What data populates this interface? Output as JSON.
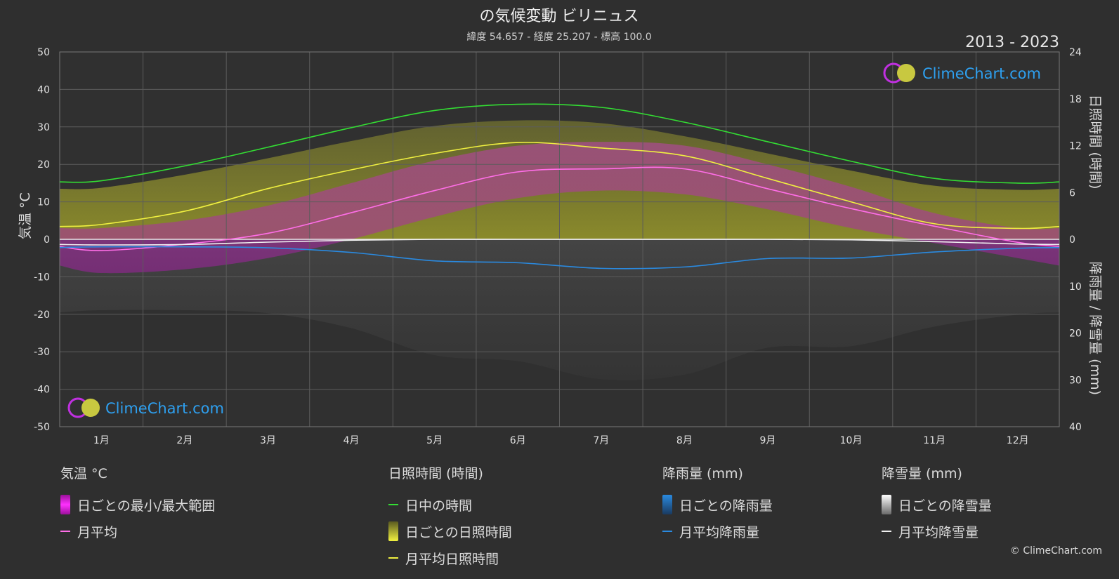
{
  "title": "の気候変動 ビリニュス",
  "subtitle": "緯度 54.657 - 経度 25.207 - 標高 100.0",
  "period": "2013 - 2023",
  "brand": "ClimeChart.com",
  "copyright": "© ClimeChart.com",
  "chart_data": {
    "type": "area",
    "months": [
      "1月",
      "2月",
      "3月",
      "4月",
      "5月",
      "6月",
      "7月",
      "8月",
      "9月",
      "10月",
      "11月",
      "12月"
    ],
    "axes": {
      "y_left": {
        "label": "気温 °C",
        "range": [
          -50,
          50
        ],
        "ticks": [
          "50",
          "40",
          "30",
          "20",
          "10",
          "0",
          "-10",
          "-20",
          "-30",
          "-40",
          "-50"
        ]
      },
      "y_right_top": {
        "label": "日照時間 (時間)",
        "range": [
          0,
          24
        ],
        "ticks": [
          "24",
          "18",
          "12",
          "6",
          "0"
        ]
      },
      "y_right_bottom": {
        "label": "降雨量 / 降雪量 (mm)",
        "range": [
          0,
          40
        ],
        "ticks": [
          "10",
          "20",
          "30",
          "40"
        ]
      }
    },
    "series": [
      {
        "name": "日中の時間",
        "unit": "時間",
        "values": [
          7.5,
          9.4,
          11.8,
          14.3,
          16.5,
          17.3,
          16.9,
          15.0,
          12.5,
          10.0,
          7.8,
          7.2
        ]
      },
      {
        "name": "月平均日照時間",
        "unit": "時間",
        "values": [
          1.9,
          3.6,
          6.5,
          8.9,
          11.0,
          12.4,
          11.7,
          10.7,
          7.8,
          4.8,
          2.0,
          1.4
        ]
      },
      {
        "name": "月平均",
        "unit": "°C",
        "values": [
          -3.0,
          -1.3,
          1.6,
          7.1,
          13.0,
          18.0,
          18.8,
          18.8,
          13.5,
          8.2,
          3.5,
          -0.8
        ]
      },
      {
        "name": "月平均降雨量",
        "unit": "mm",
        "values": [
          1.6,
          1.6,
          1.8,
          2.8,
          4.6,
          5.0,
          6.2,
          5.9,
          4.1,
          4.0,
          2.7,
          1.9
        ]
      },
      {
        "name": "月平均降雪量",
        "unit": "mm",
        "values": [
          1.2,
          1.1,
          0.6,
          0.2,
          0.0,
          0.0,
          0.0,
          0.0,
          0.0,
          0.1,
          0.5,
          1.0
        ]
      }
    ],
    "daily_temp_range": {
      "name": "日ごとの最小/最大範囲",
      "min": [
        -9,
        -8,
        -5,
        0,
        6,
        11,
        13,
        12,
        8,
        3,
        -1,
        -5
      ],
      "max": [
        3,
        5,
        9,
        15,
        21,
        25,
        26,
        25,
        20,
        14,
        7,
        3
      ]
    },
    "grid": true,
    "legend_position": "bottom"
  },
  "legend": {
    "groups": [
      {
        "title": "気温 °C",
        "items": [
          {
            "label": "日ごとの最小/最大範囲",
            "kind": "box",
            "color": "#e020e0"
          },
          {
            "label": "月平均",
            "kind": "line",
            "color": "#ff6ee8"
          }
        ]
      },
      {
        "title": "日照時間 (時間)",
        "items": [
          {
            "label": "日中の時間",
            "kind": "line",
            "color": "#33dd33"
          },
          {
            "label": "日ごとの日照時間",
            "kind": "box",
            "color": "#d8d840"
          },
          {
            "label": "月平均日照時間",
            "kind": "line",
            "color": "#f0f040"
          }
        ]
      },
      {
        "title": "降雨量 (mm)",
        "items": [
          {
            "label": "日ごとの降雨量",
            "kind": "box",
            "color": "#2a8ae0"
          },
          {
            "label": "月平均降雨量",
            "kind": "line",
            "color": "#2a8ae0"
          }
        ]
      },
      {
        "title": "降雪量 (mm)",
        "items": [
          {
            "label": "日ごとの降雪量",
            "kind": "box",
            "color": "#e0e0e0"
          },
          {
            "label": "月平均降雪量",
            "kind": "line",
            "color": "#f0f0f0"
          }
        ]
      }
    ]
  },
  "colors": {
    "background": "#2f2f2f",
    "grid": "#5a5a5a",
    "text": "#e0e0e0",
    "brand": "#2ea0f0"
  }
}
